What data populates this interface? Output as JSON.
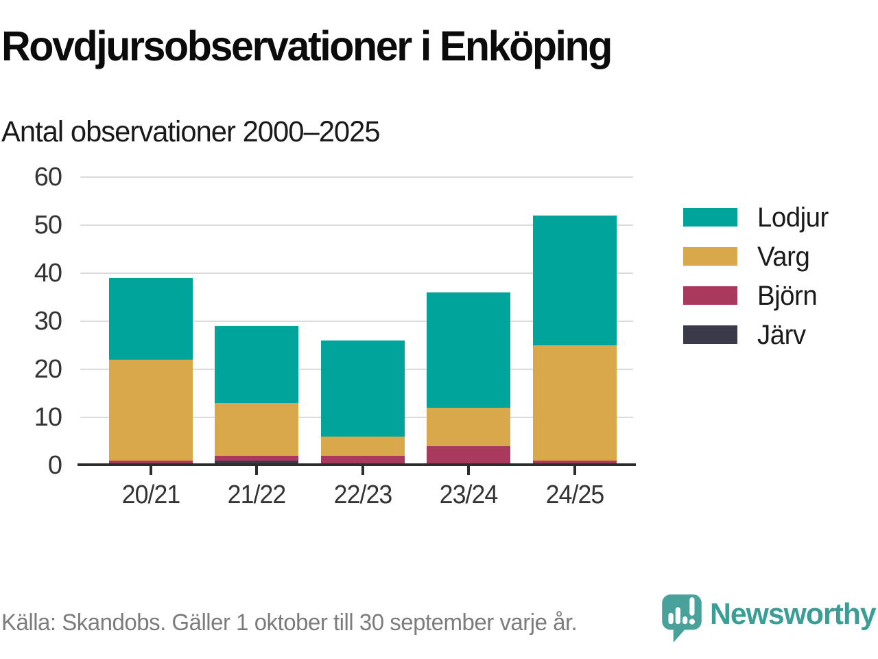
{
  "header": {
    "title": "Rovdjursobservationer i Enköping",
    "subtitle": "Antal observationer 2000–2025"
  },
  "chart_data": {
    "type": "bar",
    "stacked": true,
    "title": "Rovdjursobservationer i Enköping",
    "subtitle": "Antal observationer 2000–2025",
    "categories": [
      "20/21",
      "21/22",
      "22/23",
      "23/24",
      "24/25"
    ],
    "series": [
      {
        "name": "Lodjur",
        "color": "#00a49b",
        "values": [
          17,
          16,
          20,
          24,
          27
        ]
      },
      {
        "name": "Varg",
        "color": "#d9a84b",
        "values": [
          21,
          11,
          4,
          8,
          24
        ]
      },
      {
        "name": "Björn",
        "color": "#a93a5e",
        "values": [
          1,
          1,
          2,
          4,
          1
        ]
      },
      {
        "name": "Järv",
        "color": "#3b3a4a",
        "values": [
          0,
          1,
          0,
          0,
          0
        ]
      }
    ],
    "stack_order_bottom_to_top": [
      "Järv",
      "Björn",
      "Varg",
      "Lodjur"
    ],
    "totals": [
      39,
      29,
      26,
      36,
      52
    ],
    "xlabel": "",
    "ylabel": "",
    "ylim": [
      0,
      60
    ],
    "yticks": [
      0,
      10,
      20,
      30,
      40,
      50,
      60
    ],
    "grid": true,
    "legend_position": "right",
    "colors": {
      "gridline": "#dbdbdb",
      "axis": "#2d2d30",
      "tick_label": "#333333",
      "legend_label": "#1a1a1a"
    }
  },
  "footer": {
    "source": "Källa: Skandobs. Gäller 1 oktober till 30 september varje år.",
    "brand": "Newsworthy",
    "brand_color": "#3b9e96",
    "logo_icon": "newsworthy-logo-icon"
  }
}
